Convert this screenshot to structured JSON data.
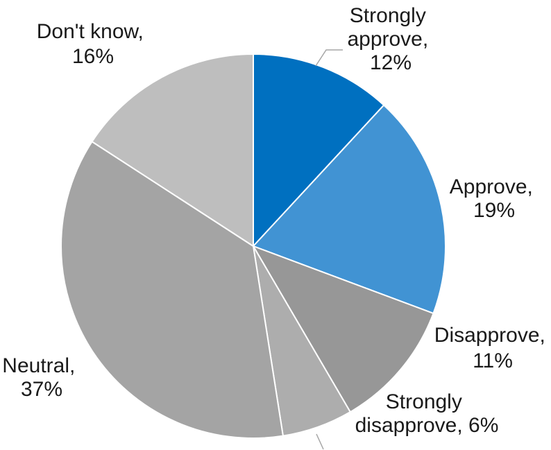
{
  "chart_data": {
    "type": "pie",
    "title": "",
    "slices": [
      {
        "name": "Strongly approve",
        "value": 12,
        "color": "#0070C0"
      },
      {
        "name": "Approve",
        "value": 19,
        "color": "#4193D3"
      },
      {
        "name": "Disapprove",
        "value": 11,
        "color": "#979797"
      },
      {
        "name": "Strongly disapprove",
        "value": 6,
        "color": "#ADADAD"
      },
      {
        "name": "Neutral",
        "value": 37,
        "color": "#A4A4A4"
      },
      {
        "name": "Don't know",
        "value": 16,
        "color": "#BEBEBE"
      }
    ],
    "labels": [
      {
        "lines": [
          "Strongly",
          "approve,",
          "12%"
        ]
      },
      {
        "lines": [
          "Approve,",
          "19%"
        ]
      },
      {
        "lines": [
          "Disapprove,",
          "11%"
        ]
      },
      {
        "lines": [
          "Strongly",
          "disapprove, 6%"
        ]
      },
      {
        "lines": [
          "Neutral,",
          "37%"
        ]
      },
      {
        "lines": [
          "Don't know,",
          "16%"
        ]
      }
    ],
    "start_angle": "12 o'clock",
    "direction": "clockwise",
    "leader_line_color": "#A6A6A6"
  }
}
